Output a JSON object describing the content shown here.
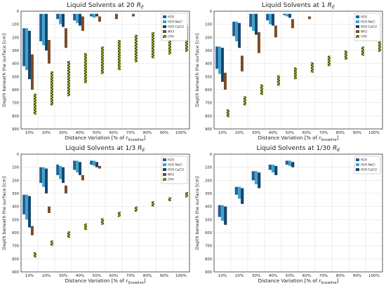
{
  "figure": {
    "panels": [
      {
        "title_main": "Liquid Solvents at 20 ",
        "title_sub": "E"
      },
      {
        "title_main": "Liquid Solvents at 1 ",
        "title_sub": "E"
      },
      {
        "title_main": "Liquid Solvents at 1/3 ",
        "title_sub": "E"
      },
      {
        "title_main": "Liquid Solvents at 1/30 ",
        "title_sub": "E"
      }
    ]
  },
  "chart_data": [
    {
      "type": "bar",
      "title": "Liquid Solvents at 20 R_E",
      "xlabel": "Distance Variation [% of r_Snowline]",
      "ylabel": "Depth beneath the surface [cm]",
      "categories": [
        "10%",
        "20%",
        "30%",
        "40%",
        "50%",
        "60%",
        "70%",
        "80%",
        "90%",
        "100%"
      ],
      "y_ticks": [
        0,
        100,
        200,
        300,
        400,
        500,
        600,
        700,
        800,
        900
      ],
      "ylim": [
        900,
        0
      ],
      "grid": true,
      "legend_position": "top-right",
      "series": [
        {
          "name": "H2O",
          "color": "#1f5f99",
          "ranges": [
            [
              130,
              420
            ],
            [
              20,
              230
            ],
            [
              20,
              60
            ],
            [
              20,
              70
            ],
            [
              20,
              40
            ],
            null,
            null,
            null,
            null,
            null
          ]
        },
        {
          "name": "H2O-NaCl",
          "color": "#3fa3c9",
          "ranges": [
            [
              130,
              450
            ],
            [
              20,
              260
            ],
            [
              20,
              100
            ],
            [
              20,
              90
            ],
            [
              20,
              50
            ],
            null,
            null,
            null,
            null,
            null
          ]
        },
        {
          "name": "H2O-CaCl2",
          "color": "#15446e",
          "ranges": [
            [
              150,
              520
            ],
            [
              20,
              300
            ],
            [
              20,
              120
            ],
            [
              20,
              110
            ],
            [
              20,
              40
            ],
            null,
            null,
            null,
            null,
            null
          ]
        },
        {
          "name": "NH3",
          "color": "#7a4a26",
          "ranges": [
            [
              330,
              600
            ],
            [
              220,
              400
            ],
            [
              130,
              280
            ],
            [
              40,
              150
            ],
            [
              40,
              80
            ],
            [
              20,
              60
            ],
            [
              20,
              40
            ],
            null,
            null,
            null
          ]
        },
        {
          "name": "CH4",
          "color": "#a7b23f",
          "ranges": [
            [
              630,
              790
            ],
            [
              460,
              720
            ],
            [
              380,
              650
            ],
            [
              320,
              550
            ],
            [
              270,
              480
            ],
            [
              220,
              450
            ],
            [
              180,
              390
            ],
            [
              160,
              360
            ],
            [
              130,
              330
            ],
            [
              110,
              310
            ]
          ]
        }
      ]
    },
    {
      "type": "bar",
      "title": "Liquid Solvents at 1 R_E",
      "xlabel": "Distance Variation [% of r_Snowline]",
      "ylabel": "Depth beneath the surface [cm]",
      "categories": [
        "10%",
        "20%",
        "30%",
        "40%",
        "50%",
        "60%",
        "70%",
        "80%",
        "90%",
        "100%"
      ],
      "y_ticks": [
        0,
        100,
        200,
        300,
        400,
        500,
        600,
        700,
        800,
        900
      ],
      "ylim": [
        900,
        0
      ],
      "grid": true,
      "legend_position": "top-right",
      "series": [
        {
          "name": "H2O",
          "color": "#1f5f99",
          "ranges": [
            [
              270,
              440
            ],
            [
              80,
              190
            ],
            [
              20,
              120
            ],
            [
              20,
              70
            ],
            [
              20,
              30
            ],
            null,
            null,
            null,
            null,
            null
          ]
        },
        {
          "name": "H2O-NaCl",
          "color": "#3fa3c9",
          "ranges": [
            [
              270,
              480
            ],
            [
              80,
              230
            ],
            [
              20,
              150
            ],
            [
              20,
              100
            ],
            [
              20,
              40
            ],
            null,
            null,
            null,
            null,
            null
          ]
        },
        {
          "name": "H2O-CaCl2",
          "color": "#15446e",
          "ranges": [
            [
              280,
              540
            ],
            [
              90,
              280
            ],
            [
              20,
              180
            ],
            [
              20,
              110
            ],
            [
              20,
              50
            ],
            null,
            null,
            null,
            null,
            null
          ]
        },
        {
          "name": "NH3",
          "color": "#7a4a26",
          "ranges": [
            [
              470,
              600
            ],
            [
              340,
              460
            ],
            [
              160,
              320
            ],
            [
              110,
              200
            ],
            [
              60,
              130
            ],
            [
              40,
              60
            ],
            null,
            null,
            null,
            null
          ]
        },
        {
          "name": "CH4",
          "color": "#a7b23f",
          "ranges": [
            [
              750,
              810
            ],
            [
              650,
              720
            ],
            [
              560,
              640
            ],
            [
              490,
              570
            ],
            [
              430,
              520
            ],
            [
              390,
              470
            ],
            [
              340,
              420
            ],
            [
              300,
              370
            ],
            [
              270,
              340
            ],
            [
              230,
              310
            ]
          ]
        }
      ]
    },
    {
      "type": "bar",
      "title": "Liquid Solvents at 1/3 R_E",
      "xlabel": "Distance Variation [% of r_Snowline]",
      "ylabel": "Depth beneath the surface [cm]",
      "categories": [
        "10%",
        "20%",
        "30%",
        "40%",
        "50%",
        "60%",
        "70%",
        "80%",
        "90%",
        "100%"
      ],
      "y_ticks": [
        0,
        100,
        200,
        300,
        400,
        500,
        600,
        700,
        800,
        900
      ],
      "ylim": [
        900,
        0
      ],
      "grid": true,
      "legend_position": "top-right",
      "series": [
        {
          "name": "H2O",
          "color": "#1f5f99",
          "ranges": [
            [
              310,
              460
            ],
            [
              100,
              220
            ],
            [
              80,
              160
            ],
            [
              50,
              120
            ],
            [
              50,
              80
            ],
            null,
            null,
            null,
            null,
            null
          ]
        },
        {
          "name": "H2O-NaCl",
          "color": "#3fa3c9",
          "ranges": [
            [
              310,
              500
            ],
            [
              100,
              250
            ],
            [
              90,
              190
            ],
            [
              50,
              140
            ],
            [
              50,
              90
            ],
            null,
            null,
            null,
            null,
            null
          ]
        },
        {
          "name": "H2O-CaCl2",
          "color": "#15446e",
          "ranges": [
            [
              320,
              560
            ],
            [
              110,
              300
            ],
            [
              100,
              220
            ],
            [
              60,
              160
            ],
            [
              60,
              100
            ],
            null,
            null,
            null,
            null,
            null
          ]
        },
        {
          "name": "NH3",
          "color": "#7a4a26",
          "ranges": [
            [
              550,
              620
            ],
            [
              400,
              450
            ],
            [
              240,
              300
            ],
            [
              160,
              200
            ],
            [
              90,
              110
            ],
            null,
            null,
            null,
            null,
            null
          ]
        },
        {
          "name": "CH4",
          "color": "#a7b23f",
          "ranges": [
            [
              750,
              790
            ],
            [
              660,
              700
            ],
            [
              590,
              640
            ],
            [
              530,
              580
            ],
            [
              490,
              540
            ],
            [
              440,
              480
            ],
            [
              400,
              440
            ],
            [
              360,
              400
            ],
            [
              330,
              360
            ],
            [
              290,
              330
            ]
          ]
        }
      ]
    },
    {
      "type": "bar",
      "title": "Liquid Solvents at 1/30 R_E",
      "xlabel": "Distance Variation [% of r_Snowline]",
      "ylabel": "Depth beneath the surface [cm]",
      "categories": [
        "10%",
        "20%",
        "30%",
        "40%",
        "50%",
        "60%",
        "70%",
        "80%",
        "90%",
        "100%"
      ],
      "y_ticks": [
        0,
        100,
        200,
        300,
        400,
        500,
        600,
        700,
        800,
        900
      ],
      "ylim": [
        900,
        0
      ],
      "grid": true,
      "legend_position": "top-right",
      "series": [
        {
          "name": "H2O",
          "color": "#1f5f99",
          "ranges": [
            [
              390,
              480
            ],
            [
              250,
              310
            ],
            [
              130,
              200
            ],
            [
              80,
              120
            ],
            [
              50,
              80
            ],
            null,
            null,
            null,
            null,
            null
          ]
        },
        {
          "name": "H2O-NaCl",
          "color": "#3fa3c9",
          "ranges": [
            [
              390,
              510
            ],
            [
              250,
              340
            ],
            [
              130,
              230
            ],
            [
              80,
              140
            ],
            [
              50,
              90
            ],
            null,
            null,
            null,
            null,
            null
          ]
        },
        {
          "name": "H2O-CaCl2",
          "color": "#15446e",
          "ranges": [
            [
              400,
              540
            ],
            [
              260,
              380
            ],
            [
              140,
              260
            ],
            [
              90,
              160
            ],
            [
              60,
              100
            ],
            null,
            null,
            null,
            null,
            null
          ]
        }
      ]
    }
  ]
}
